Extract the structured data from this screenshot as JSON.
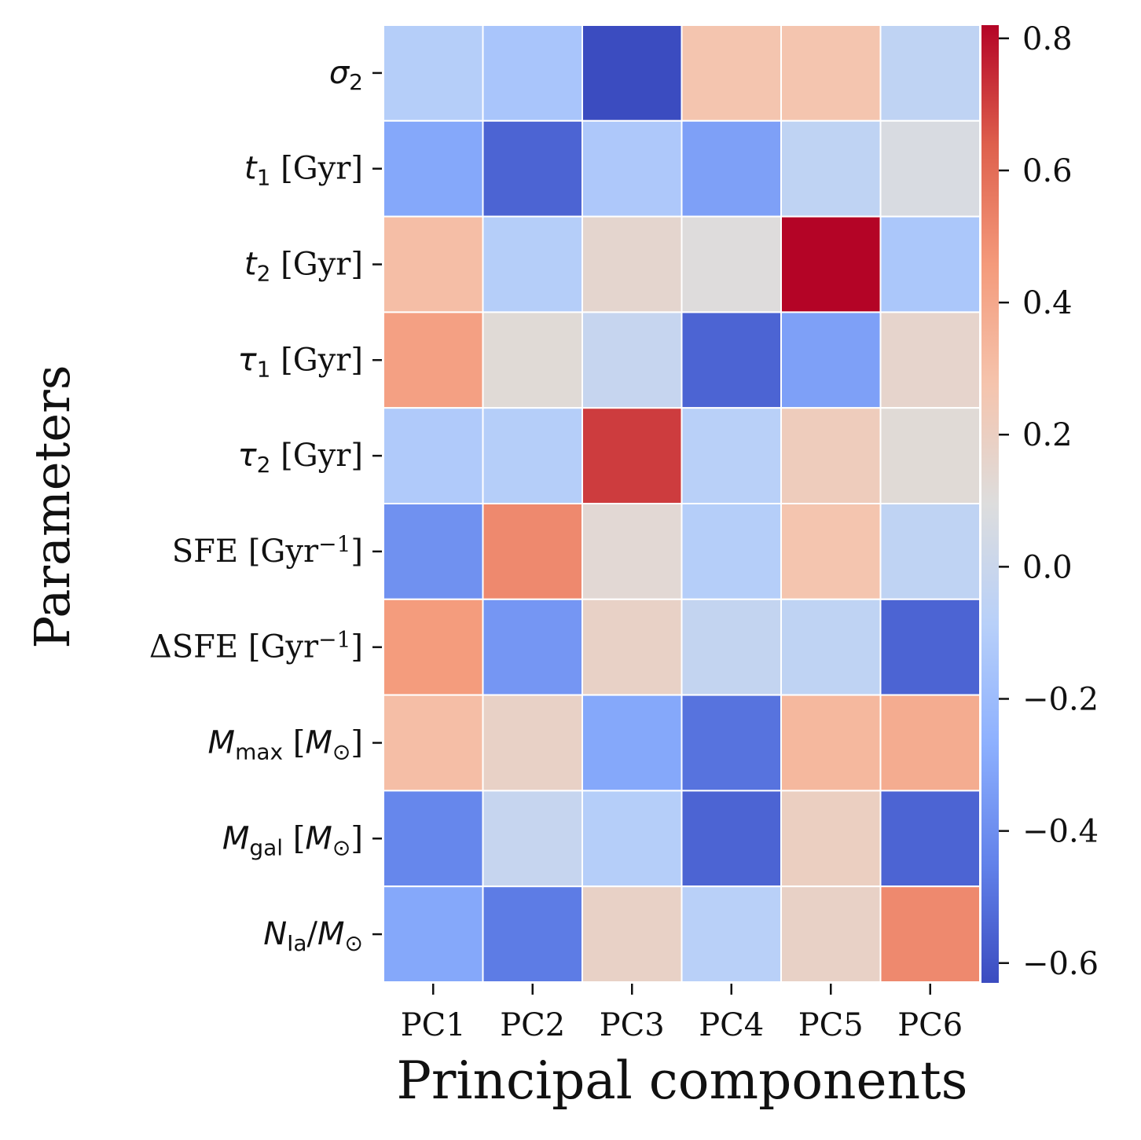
{
  "chart_data": {
    "type": "heatmap",
    "xlabel": "Principal components",
    "ylabel": "Parameters",
    "columns": [
      "PC1",
      "PC2",
      "PC3",
      "PC4",
      "PC5",
      "PC6"
    ],
    "rows": [
      {
        "label_parts": [
          {
            "t": "σ",
            "s": "i"
          },
          {
            "t": "2",
            "s": "sub"
          }
        ]
      },
      {
        "label_parts": [
          {
            "t": "t",
            "s": "i"
          },
          {
            "t": "1",
            "s": "sub"
          },
          {
            "t": " [Gyr]",
            "s": "n"
          }
        ]
      },
      {
        "label_parts": [
          {
            "t": "t",
            "s": "i"
          },
          {
            "t": "2",
            "s": "sub"
          },
          {
            "t": " [Gyr]",
            "s": "n"
          }
        ]
      },
      {
        "label_parts": [
          {
            "t": "τ",
            "s": "i"
          },
          {
            "t": "1",
            "s": "sub"
          },
          {
            "t": " [Gyr]",
            "s": "n"
          }
        ]
      },
      {
        "label_parts": [
          {
            "t": "τ",
            "s": "i"
          },
          {
            "t": "2",
            "s": "sub"
          },
          {
            "t": " [Gyr]",
            "s": "n"
          }
        ]
      },
      {
        "label_parts": [
          {
            "t": "SFE [Gyr",
            "s": "n"
          },
          {
            "t": "−1",
            "s": "sup"
          },
          {
            "t": "]",
            "s": "n"
          }
        ]
      },
      {
        "label_parts": [
          {
            "t": "ΔSFE [Gyr",
            "s": "n"
          },
          {
            "t": "−1",
            "s": "sup"
          },
          {
            "t": "]",
            "s": "n"
          }
        ]
      },
      {
        "label_parts": [
          {
            "t": "M",
            "s": "i"
          },
          {
            "t": "max",
            "s": "sub"
          },
          {
            "t": " [",
            "s": "n"
          },
          {
            "t": "M",
            "s": "i"
          },
          {
            "t": "⊙",
            "s": "sub"
          },
          {
            "t": "]",
            "s": "n"
          }
        ]
      },
      {
        "label_parts": [
          {
            "t": "M",
            "s": "i"
          },
          {
            "t": "gal",
            "s": "sub"
          },
          {
            "t": " [",
            "s": "n"
          },
          {
            "t": "M",
            "s": "i"
          },
          {
            "t": "⊙",
            "s": "sub"
          },
          {
            "t": "]",
            "s": "n"
          }
        ]
      },
      {
        "label_parts": [
          {
            "t": "N",
            "s": "i"
          },
          {
            "t": "Ia",
            "s": "sub"
          },
          {
            "t": "/",
            "s": "n"
          },
          {
            "t": "M",
            "s": "i"
          },
          {
            "t": "⊙",
            "s": "sub"
          }
        ]
      }
    ],
    "values": [
      [
        -0.1,
        -0.15,
        -0.63,
        0.27,
        0.27,
        -0.05
      ],
      [
        -0.3,
        -0.55,
        -0.13,
        -0.33,
        -0.05,
        0.07
      ],
      [
        0.3,
        -0.1,
        0.15,
        0.1,
        0.82,
        -0.14
      ],
      [
        0.43,
        0.12,
        -0.02,
        -0.55,
        -0.33,
        0.16
      ],
      [
        -0.12,
        -0.1,
        0.71,
        -0.08,
        0.22,
        0.12
      ],
      [
        -0.39,
        0.51,
        0.13,
        -0.1,
        0.27,
        -0.05
      ],
      [
        0.45,
        -0.37,
        0.18,
        -0.03,
        -0.05,
        -0.55
      ],
      [
        0.3,
        0.18,
        -0.3,
        -0.5,
        0.33,
        0.38
      ],
      [
        -0.43,
        -0.02,
        -0.1,
        -0.55,
        0.2,
        -0.55
      ],
      [
        -0.3,
        -0.47,
        0.18,
        -0.08,
        0.18,
        0.51
      ]
    ],
    "colormap": "coolwarm",
    "vmin": -0.63,
    "vmax": 0.82,
    "colorbar_ticks": [
      0.8,
      0.6,
      0.4,
      0.2,
      0.0,
      -0.2,
      -0.4,
      -0.6
    ],
    "colorbar_tick_labels": [
      "0.8",
      "0.6",
      "0.4",
      "0.2",
      "0.0",
      "−0.2",
      "−0.4",
      "−0.6"
    ],
    "cell_border_color": "#ffffff"
  }
}
